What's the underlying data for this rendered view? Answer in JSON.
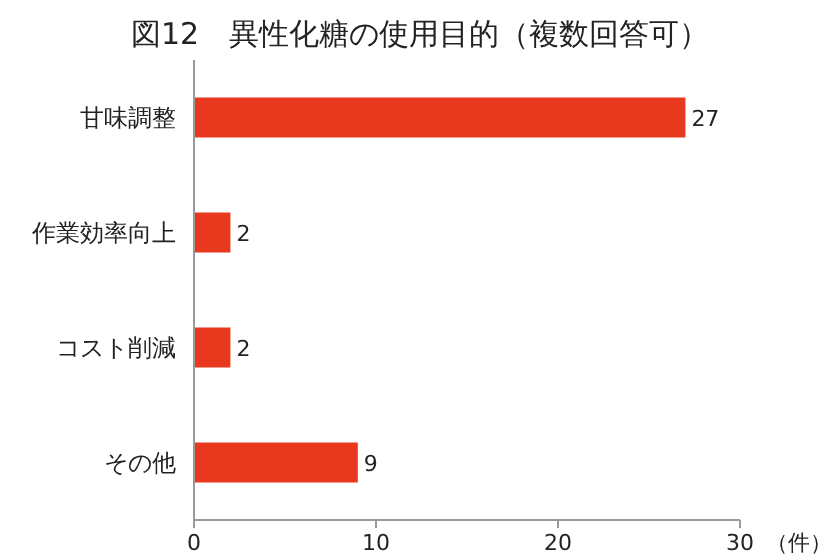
{
  "chart_data": {
    "type": "bar",
    "orientation": "horizontal",
    "title": "図12　異性化糖の使用目的（複数回答可）",
    "xlabel": "（件）",
    "categories": [
      "甘味調整",
      "作業効率向上",
      "コスト削減",
      "その他"
    ],
    "values": [
      27,
      2,
      2,
      9
    ],
    "color": "#e8391f",
    "xlim": [
      0,
      30
    ],
    "xticks": [
      0,
      10,
      20,
      30
    ],
    "data_labels": true
  }
}
